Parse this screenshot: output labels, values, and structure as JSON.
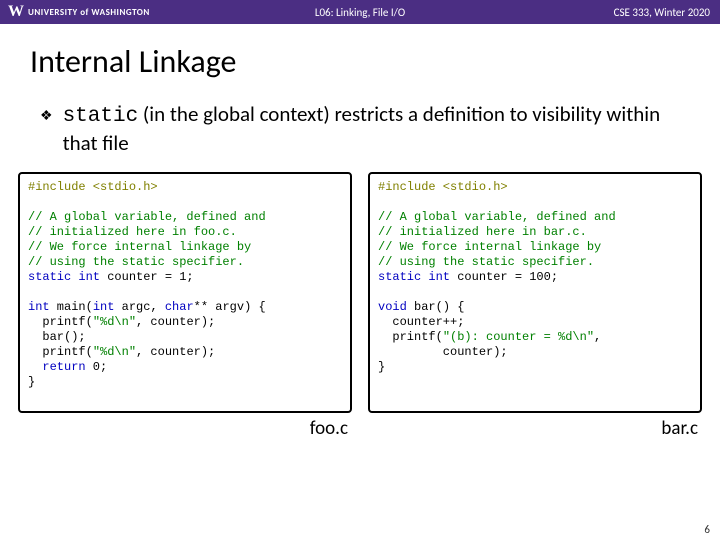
{
  "header": {
    "logo_w": "W",
    "university": "UNIVERSITY of WASHINGTON",
    "lecture": "L06: Linking, File I/O",
    "course": "CSE 333, Winter 2020"
  },
  "title": "Internal Linkage",
  "bullet_glyph": "❖",
  "paragraph": {
    "code_word": "static",
    "rest": " (in the global context) restricts a definition to visibility within that file"
  },
  "left": {
    "include": "#include <stdio.h>",
    "c1": "// A global variable, defined and",
    "c2": "// initialized here in foo.c.",
    "c3": "// We force internal linkage by",
    "c4": "// using the static specifier.",
    "decl_kw": "static int",
    "decl_rest": " counter = 1;",
    "main_sig_kw1": "int",
    "main_sig_mid": " main(",
    "main_sig_kw2": "int",
    "main_sig_mid2": " argc, ",
    "main_sig_kw3": "char",
    "main_sig_end": "** argv) {",
    "p1a": "  printf(",
    "p1s": "\"%d\\n\"",
    "p1b": ", counter);",
    "barcall": "  bar();",
    "p2a": "  printf(",
    "p2s": "\"%d\\n\"",
    "p2b": ", counter);",
    "ret_kw": "  return",
    "ret_rest": " 0;",
    "close": "}",
    "filename": "foo.c"
  },
  "right": {
    "include": "#include <stdio.h>",
    "c1": "// A global variable, defined and",
    "c2": "// initialized here in bar.c.",
    "c3": "// We force internal linkage by",
    "c4": "// using the static specifier.",
    "decl_kw": "static int",
    "decl_rest": " counter = 100;",
    "bar_kw": "void",
    "bar_rest": " bar() {",
    "inc": "  counter++;",
    "p1a": "  printf(",
    "p1s": "\"(b): counter = %d\\n\"",
    "p1b": ",",
    "p1c": "         counter);",
    "close": "}",
    "filename": "bar.c"
  },
  "slidenum": "6",
  "colors": {
    "header_bg": "#4b2e83",
    "keyword": "#0000c0",
    "preproc": "#808000",
    "comment": "#008000",
    "string": "#008000"
  }
}
